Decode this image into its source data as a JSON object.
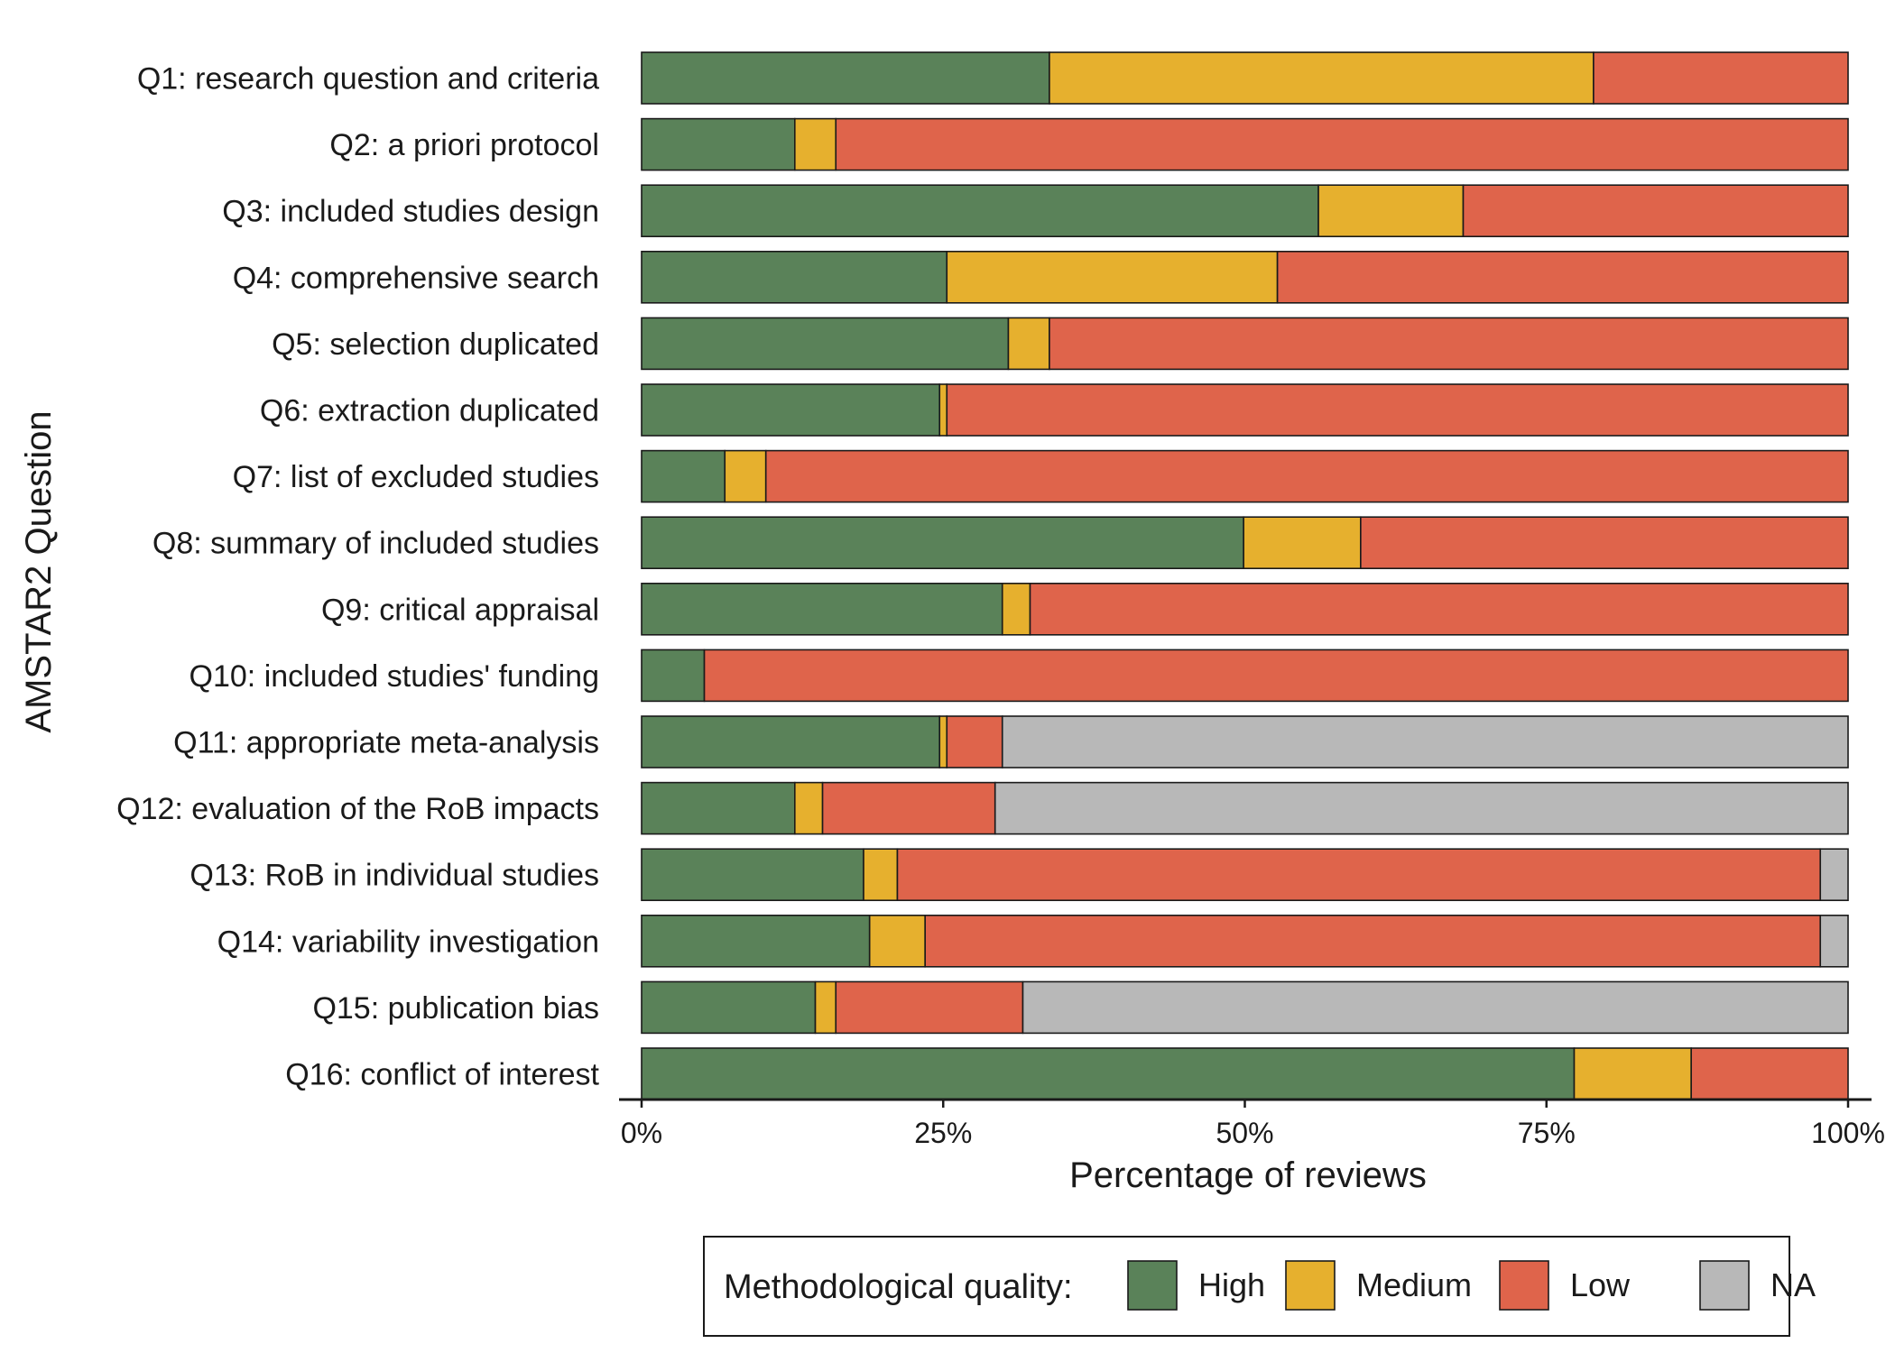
{
  "chart_data": {
    "type": "bar",
    "orientation": "horizontal",
    "stacked": true,
    "categories": [
      "Q1: research question and criteria",
      "Q2: a priori protocol",
      "Q3: included studies design",
      "Q4: comprehensive search",
      "Q5: selection duplicated",
      "Q6: extraction duplicated",
      "Q7: list of excluded studies",
      "Q8: summary of included studies",
      "Q9: critical appraisal",
      "Q10: included studies' funding",
      "Q11: appropriate meta-analysis",
      "Q12: evaluation of the RoB impacts",
      "Q13: RoB in individual studies",
      "Q14: variability investigation",
      "Q15: publication bias",
      "Q16: conflict of interest"
    ],
    "series": [
      {
        "name": "High",
        "color": "#5a8259",
        "values": [
          33.8,
          12.7,
          56.1,
          25.3,
          30.4,
          24.7,
          6.9,
          49.9,
          29.9,
          5.2,
          24.7,
          12.7,
          18.4,
          18.9,
          14.4,
          77.3
        ]
      },
      {
        "name": "Medium",
        "color": "#e6b02e",
        "values": [
          45.1,
          3.4,
          12.0,
          27.4,
          3.4,
          0.6,
          3.4,
          9.7,
          2.3,
          0.0,
          0.6,
          2.3,
          2.8,
          4.6,
          1.7,
          9.7
        ]
      },
      {
        "name": "Low",
        "color": "#df644b",
        "values": [
          21.1,
          83.9,
          31.9,
          47.3,
          66.2,
          74.7,
          89.7,
          40.4,
          67.8,
          94.8,
          4.6,
          14.3,
          76.5,
          74.2,
          15.5,
          13.0
        ]
      },
      {
        "name": "NA",
        "color": "#b8b8b8",
        "values": [
          0.0,
          0.0,
          0.0,
          0.0,
          0.0,
          0.0,
          0.0,
          0.0,
          0.0,
          0.0,
          70.1,
          70.7,
          2.3,
          2.3,
          68.4,
          0.0
        ]
      }
    ],
    "xlim": [
      0,
      100
    ],
    "xticks": [
      "0%",
      "25%",
      "50%",
      "75%",
      "100%"
    ],
    "xlabel": "Percentage of reviews",
    "ylabel": "AMSTAR2 Question",
    "grid": false,
    "legend": {
      "title": "Methodological quality:",
      "position": "bottom"
    }
  }
}
